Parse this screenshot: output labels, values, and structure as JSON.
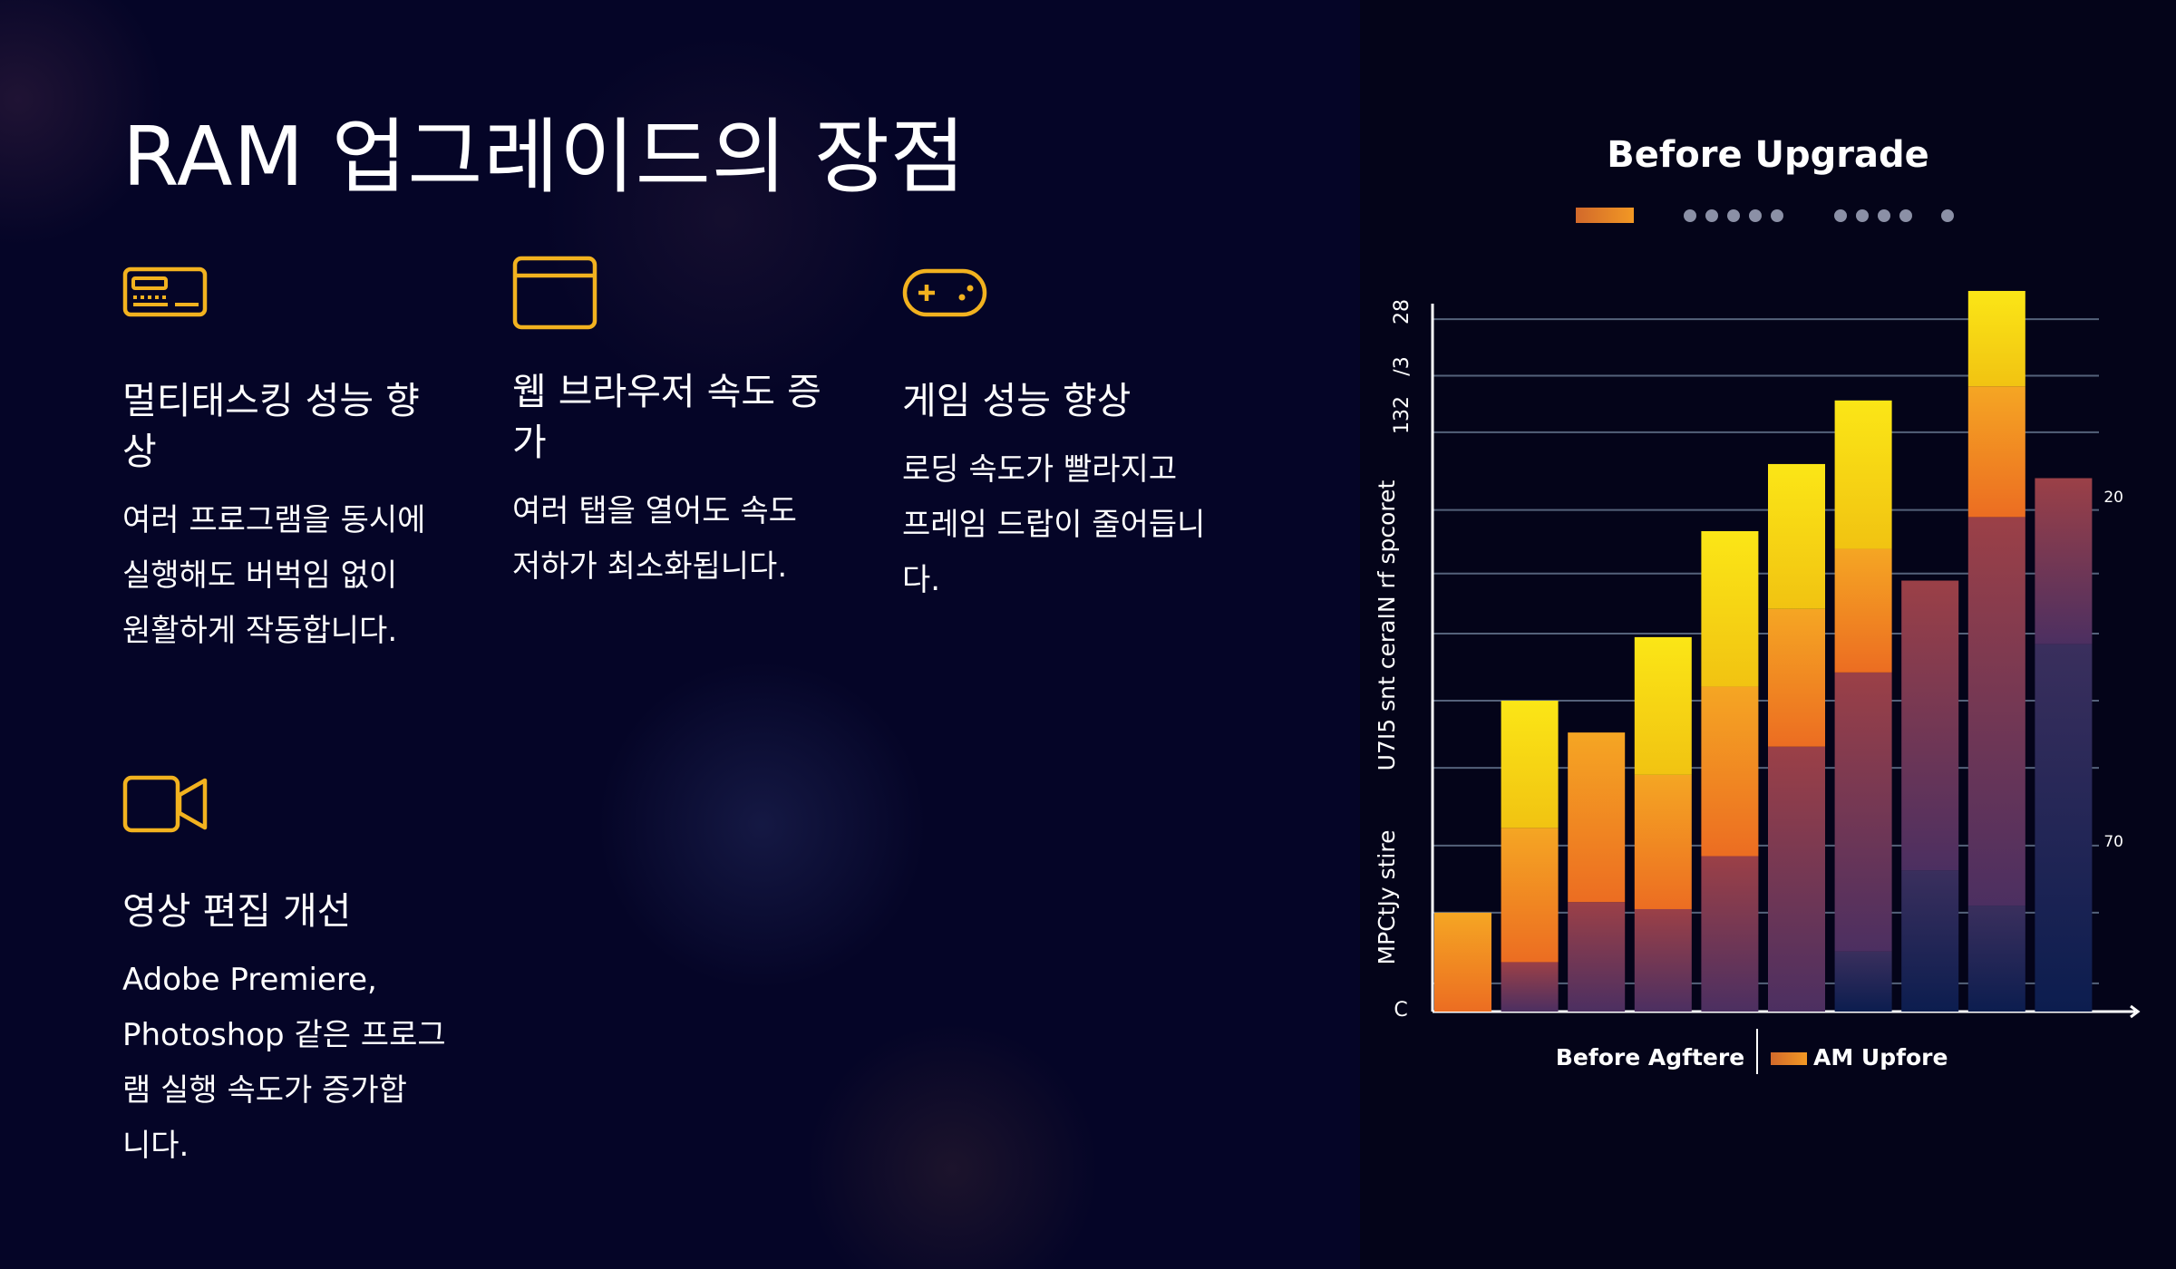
{
  "title": "RAM 업그레이드의 장점",
  "features": [
    {
      "icon": "ram-card-icon",
      "title": "멀티태스킹 성능 향상",
      "title_lines": [
        "멀티태스킹 성능 향",
        "상"
      ],
      "lines": [
        "여러 프로그램을 동시에",
        "실행해도 버벅임 없이",
        "원활하게 작동합니다."
      ]
    },
    {
      "icon": "browser-window-icon",
      "title": "웹 브라우저 속도 증가",
      "title_lines": [
        "웹 브라우저 속도 증",
        "가"
      ],
      "lines": [
        "여러 탭을 열어도 속도",
        "저하가 최소화됩니다."
      ]
    },
    {
      "icon": "gamepad-icon",
      "title": "게임 성능 향상",
      "title_lines": [
        "게임 성능 향상"
      ],
      "lines": [
        "로딩 속도가 빨라지고",
        "프레임 드랍이 줄어듭니",
        "다."
      ]
    },
    {
      "icon": "video-camera-icon",
      "title": "영상 편집 개선",
      "title_lines": [
        "영상 편집 개선"
      ],
      "lines": [
        "Adobe Premiere,",
        "Photoshop 같은 프로그",
        "램 실행 속도가 증가합",
        "니다."
      ]
    }
  ],
  "colors": {
    "accent": "#f2b21f",
    "background": "#050526",
    "chart_background": "#040419",
    "yellow": "#f7d614",
    "orange": "#ef8f1c",
    "red_purple": "#8a3c56",
    "navy": "#172a5e"
  },
  "chart_data": {
    "type": "bar",
    "title": "Before Upgrade",
    "ylabel": "U7I5 snt ceraIN rf spcoret",
    "ylabel2": "MPCtJy stire",
    "y_ticks_left": [
      "28",
      "/3",
      "132",
      "C"
    ],
    "y_ticks_right": [
      "20",
      "70"
    ],
    "ylim": [
      0,
      100
    ],
    "legend": [
      {
        "label": "Before Agftere",
        "swatch": false
      },
      {
        "label": "AM Upfore",
        "swatch": true
      }
    ],
    "bars": [
      {
        "total": 14,
        "segments": [
          {
            "c": "orange",
            "v": 14
          }
        ]
      },
      {
        "total": 44,
        "segments": [
          {
            "c": "red_purple",
            "v": 7
          },
          {
            "c": "orange",
            "v": 19
          },
          {
            "c": "yellow",
            "v": 18
          }
        ]
      },
      {
        "total": 39.5,
        "segments": [
          {
            "c": "red_purple",
            "v": 15.5
          },
          {
            "c": "orange",
            "v": 24
          }
        ]
      },
      {
        "total": 53,
        "segments": [
          {
            "c": "red_purple",
            "v": 14.5
          },
          {
            "c": "orange",
            "v": 19
          },
          {
            "c": "yellow",
            "v": 19.5
          }
        ]
      },
      {
        "total": 68,
        "segments": [
          {
            "c": "red_purple",
            "v": 22
          },
          {
            "c": "orange",
            "v": 24
          },
          {
            "c": "yellow",
            "v": 22
          }
        ]
      },
      {
        "total": 77.5,
        "segments": [
          {
            "c": "red_purple",
            "v": 37.5
          },
          {
            "c": "orange",
            "v": 19.5
          },
          {
            "c": "yellow",
            "v": 20.5
          }
        ]
      },
      {
        "total": 86.5,
        "segments": [
          {
            "c": "navy",
            "v": 8.5
          },
          {
            "c": "red_purple",
            "v": 39.5
          },
          {
            "c": "orange",
            "v": 17.5
          },
          {
            "c": "yellow",
            "v": 21
          }
        ]
      },
      {
        "total": 61,
        "segments": [
          {
            "c": "navy",
            "v": 20
          },
          {
            "c": "red_purple",
            "v": 41
          }
        ]
      },
      {
        "total": 102,
        "segments": [
          {
            "c": "navy",
            "v": 15
          },
          {
            "c": "red_purple",
            "v": 55
          },
          {
            "c": "orange",
            "v": 18.5
          },
          {
            "c": "yellow",
            "v": 13.5
          }
        ]
      },
      {
        "total": 75.5,
        "segments": [
          {
            "c": "navy",
            "v": 52
          },
          {
            "c": "red_purple",
            "v": 23.5
          }
        ]
      }
    ]
  }
}
